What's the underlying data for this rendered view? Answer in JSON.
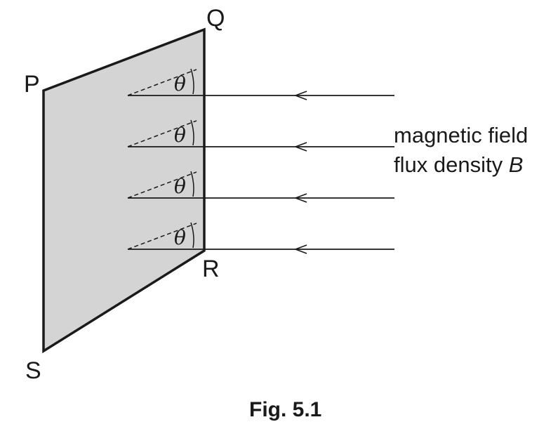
{
  "diagram": {
    "corners": {
      "p": "P",
      "q": "Q",
      "r": "R",
      "s": "S"
    },
    "angle_symbol": "θ",
    "field_label": {
      "line1": "magnetic field",
      "line2_prefix": "flux density ",
      "line2_symbol": "B"
    },
    "field_line_count": 4,
    "caption": "Fig. 5.1",
    "colors": {
      "plane_fill": "#d4d4d4",
      "stroke": "#1a1a1a"
    }
  }
}
